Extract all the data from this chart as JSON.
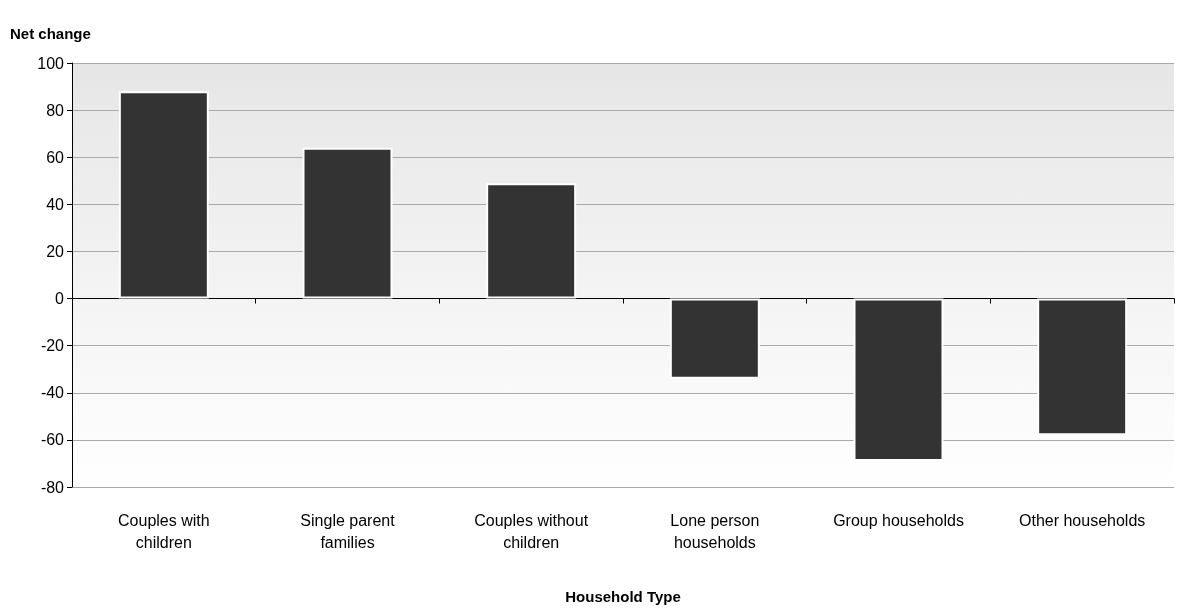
{
  "chart_data": {
    "type": "bar",
    "ylabel": "Net change",
    "xlabel": "Household Type",
    "categories": [
      "Couples with\nchildren",
      "Single parent\nfamilies",
      "Couples without\nchildren",
      "Lone person\nhouseholds",
      "Group households",
      "Other households"
    ],
    "values": [
      88,
      64,
      49,
      -34,
      -69,
      -58
    ],
    "color": "#333333",
    "ylim": [
      -80,
      100
    ],
    "yticks": [
      -80,
      -60,
      -40,
      -20,
      0,
      20,
      40,
      60,
      80,
      100
    ],
    "grid": "y"
  }
}
